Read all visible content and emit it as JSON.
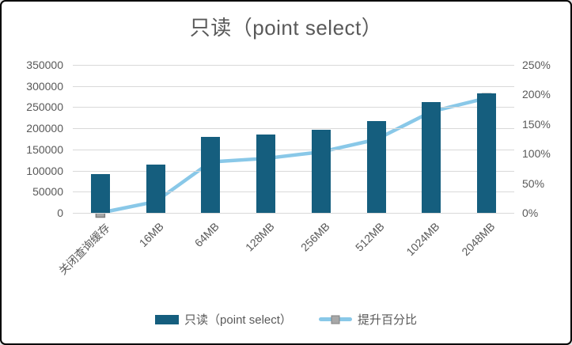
{
  "window": {
    "background": "#ffffff",
    "border_color": "#000000"
  },
  "chart_data": {
    "type": "bar",
    "title": "只读（point select）",
    "categories": [
      "关闭查询缓存",
      "16MB",
      "64MB",
      "128MB",
      "256MB",
      "512MB",
      "1024MB",
      "2048MB"
    ],
    "series": [
      {
        "name": "只读（point select）",
        "kind": "bar",
        "axis": "left",
        "color": "#155E7E",
        "values": [
          92000,
          114000,
          180000,
          185000,
          196000,
          217000,
          262000,
          283000
        ]
      },
      {
        "name": "提升百分比",
        "kind": "line",
        "axis": "right",
        "color": "#89C8E8",
        "marker": {
          "shape": "square",
          "fill": "#A8A8A8",
          "border": "#7F7F7F"
        },
        "values_unit": "%",
        "values": [
          0,
          19,
          86,
          92,
          103,
          124,
          171,
          194
        ]
      }
    ],
    "left_axis": {
      "min": 0,
      "max": 350000,
      "step": 50000,
      "tick_labels": [
        "0",
        "50000",
        "100000",
        "150000",
        "200000",
        "250000",
        "300000",
        "350000"
      ]
    },
    "right_axis": {
      "min": 0,
      "max": 250,
      "step": 50,
      "tick_labels": [
        "0%",
        "50%",
        "100%",
        "150%",
        "200%",
        "250%"
      ]
    },
    "grid": true,
    "gridline_color": "#D9D9D9",
    "text_color": "#595959",
    "legend_position": "bottom"
  }
}
